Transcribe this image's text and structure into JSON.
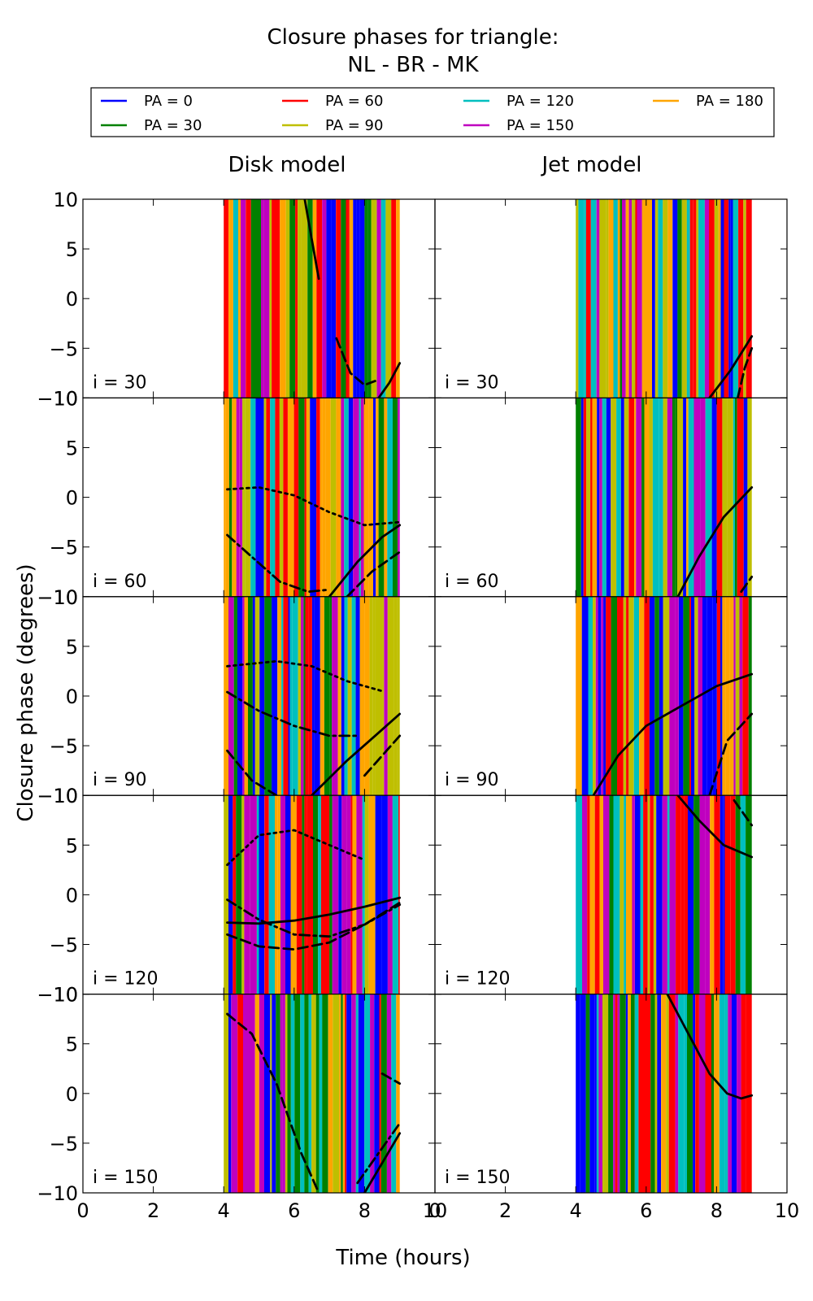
{
  "chart_data": {
    "type": "line",
    "title": "Closure phases for triangle:",
    "subtitle": "NL - BR - MK",
    "column_titles": [
      "Disk model",
      "Jet model"
    ],
    "xlabel": "Time (hours)",
    "ylabel": "Closure phase (degrees)",
    "xlim": [
      0,
      10
    ],
    "ylim": [
      -10,
      10
    ],
    "xticks": [
      0,
      2,
      4,
      6,
      8,
      10
    ],
    "yticks": [
      -10,
      -5,
      0,
      5,
      10
    ],
    "grid": false,
    "legend_position": "top",
    "legend": [
      {
        "name": "PA = 0",
        "color": "#0000ff"
      },
      {
        "name": "PA = 30",
        "color": "#008000"
      },
      {
        "name": "PA = 60",
        "color": "#ff0000"
      },
      {
        "name": "PA = 90",
        "color": "#bfbf00"
      },
      {
        "name": "PA = 120",
        "color": "#00bfbf"
      },
      {
        "name": "PA = 150",
        "color": "#bf00bf"
      },
      {
        "name": "PA = 180",
        "color": "#ffa500"
      }
    ],
    "inclination_labels": [
      "i = 30",
      "i = 60",
      "i = 90",
      "i = 120",
      "i = 150"
    ],
    "time_range": [
      4,
      9
    ],
    "panels": [
      {
        "model": "Disk model",
        "inclination": "i = 30",
        "black_curves": [
          {
            "style": "solid",
            "x": [
              6.3,
              6.5,
              6.7
            ],
            "y": [
              10,
              6,
              2
            ]
          },
          {
            "style": "dashed",
            "x": [
              7.2,
              7.6,
              8.0,
              8.3
            ],
            "y": [
              -4,
              -7.5,
              -8.7,
              -8.3
            ]
          },
          {
            "style": "solid",
            "x": [
              8.4,
              8.7,
              9.0
            ],
            "y": [
              -10,
              -8.5,
              -6.5
            ]
          }
        ]
      },
      {
        "model": "Jet model",
        "inclination": "i = 30",
        "black_curves": [
          {
            "style": "solid",
            "x": [
              7.8,
              8.4,
              9.0
            ],
            "y": [
              -10,
              -7.2,
              -3.8
            ]
          },
          {
            "style": "dashed",
            "x": [
              8.6,
              8.8,
              9.0
            ],
            "y": [
              -10,
              -7,
              -5
            ]
          }
        ]
      },
      {
        "model": "Disk model",
        "inclination": "i = 60",
        "black_curves": [
          {
            "style": "dotted",
            "x": [
              4.1,
              5.0,
              6.0,
              7.0,
              8.0,
              9.0
            ],
            "y": [
              0.8,
              1.0,
              0.2,
              -1.5,
              -2.8,
              -2.5
            ]
          },
          {
            "style": "dashdot",
            "x": [
              4.1,
              4.8,
              5.6,
              6.4,
              7.0
            ],
            "y": [
              -3.8,
              -6.0,
              -8.5,
              -9.5,
              -9.3
            ]
          },
          {
            "style": "solid",
            "x": [
              7.0,
              7.8,
              8.5,
              9.0
            ],
            "y": [
              -10,
              -6.5,
              -4.0,
              -2.8
            ]
          },
          {
            "style": "dashed",
            "x": [
              7.5,
              8.2,
              9.0
            ],
            "y": [
              -10,
              -7.5,
              -5.5
            ]
          }
        ]
      },
      {
        "model": "Jet model",
        "inclination": "i = 60",
        "black_curves": [
          {
            "style": "solid",
            "x": [
              6.9,
              7.5,
              8.2,
              9.0
            ],
            "y": [
              -10,
              -6.0,
              -2.0,
              1.0
            ]
          },
          {
            "style": "dashed",
            "x": [
              8.7,
              9.0
            ],
            "y": [
              -9.5,
              -8.0
            ]
          }
        ]
      },
      {
        "model": "Disk model",
        "inclination": "i = 90",
        "black_curves": [
          {
            "style": "dashdot",
            "x": [
              4.1,
              5.0,
              6.0,
              7.0,
              7.8
            ],
            "y": [
              0.4,
              -1.5,
              -3.0,
              -4.0,
              -4.0
            ]
          },
          {
            "style": "dotted",
            "x": [
              4.1,
              5.5,
              6.5,
              7.5,
              8.5
            ],
            "y": [
              3.0,
              3.5,
              3.0,
              1.5,
              0.5
            ]
          },
          {
            "style": "solid",
            "x": [
              6.5,
              7.5,
              8.3,
              9.0
            ],
            "y": [
              -10,
              -6.5,
              -4.0,
              -1.8
            ]
          },
          {
            "style": "dashed",
            "x": [
              4.1,
              4.8,
              5.5
            ],
            "y": [
              -5.5,
              -8.5,
              -10
            ]
          },
          {
            "style": "dashed",
            "x": [
              8.0,
              8.5,
              9.0
            ],
            "y": [
              -8.0,
              -6.0,
              -4.0
            ]
          }
        ]
      },
      {
        "model": "Jet model",
        "inclination": "i = 90",
        "black_curves": [
          {
            "style": "solid",
            "x": [
              4.5,
              5.2,
              6.0,
              7.0,
              8.0,
              9.0
            ],
            "y": [
              -10,
              -6.0,
              -3.0,
              -1.0,
              1.0,
              2.2
            ]
          },
          {
            "style": "dashed",
            "x": [
              7.8,
              8.3,
              9.0
            ],
            "y": [
              -10,
              -4.5,
              -1.8
            ]
          }
        ]
      },
      {
        "model": "Disk model",
        "inclination": "i = 120",
        "black_curves": [
          {
            "style": "solid",
            "x": [
              4.1,
              5.0,
              6.0,
              7.0,
              8.0,
              9.0
            ],
            "y": [
              -2.8,
              -2.9,
              -2.6,
              -2.0,
              -1.2,
              -0.3
            ]
          },
          {
            "style": "dashed",
            "x": [
              4.1,
              5.0,
              6.0,
              7.0,
              8.0,
              9.0
            ],
            "y": [
              -4.0,
              -5.2,
              -5.5,
              -4.8,
              -3.0,
              -0.8
            ]
          },
          {
            "style": "dashdot",
            "x": [
              4.1,
              5.0,
              6.0,
              7.0,
              8.0,
              9.0
            ],
            "y": [
              -0.5,
              -2.5,
              -4.0,
              -4.2,
              -3.0,
              -1.0
            ]
          },
          {
            "style": "dotted",
            "x": [
              4.1,
              5.0,
              6.0,
              7.0,
              8.0
            ],
            "y": [
              3.0,
              6.0,
              6.5,
              5.0,
              3.5
            ]
          }
        ]
      },
      {
        "model": "Jet model",
        "inclination": "i = 120",
        "black_curves": [
          {
            "style": "solid",
            "x": [
              6.9,
              7.5,
              8.2,
              9.0
            ],
            "y": [
              10,
              7.5,
              5.0,
              3.8
            ]
          },
          {
            "style": "dashed",
            "x": [
              8.5,
              9.0
            ],
            "y": [
              9.5,
              7.0
            ]
          }
        ]
      },
      {
        "model": "Disk model",
        "inclination": "i = 150",
        "black_curves": [
          {
            "style": "dashed",
            "x": [
              4.1,
              4.8,
              5.5,
              6.2,
              6.7
            ],
            "y": [
              8.0,
              6.0,
              1.0,
              -6.0,
              -10
            ]
          },
          {
            "style": "solid",
            "x": [
              8.0,
              8.5,
              9.0
            ],
            "y": [
              -10,
              -7.0,
              -4.0
            ]
          },
          {
            "style": "dashdot",
            "x": [
              7.8,
              8.4,
              9.0
            ],
            "y": [
              -9.0,
              -6.0,
              -3.0
            ]
          },
          {
            "style": "dashed",
            "x": [
              8.5,
              9.0
            ],
            "y": [
              2.0,
              1.0
            ]
          }
        ]
      },
      {
        "model": "Jet model",
        "inclination": "i = 150",
        "black_curves": [
          {
            "style": "solid",
            "x": [
              6.6,
              7.2,
              7.8,
              8.3,
              8.7,
              9.0
            ],
            "y": [
              10,
              6.0,
              2.0,
              0.0,
              -0.5,
              -0.2
            ]
          }
        ]
      }
    ]
  }
}
